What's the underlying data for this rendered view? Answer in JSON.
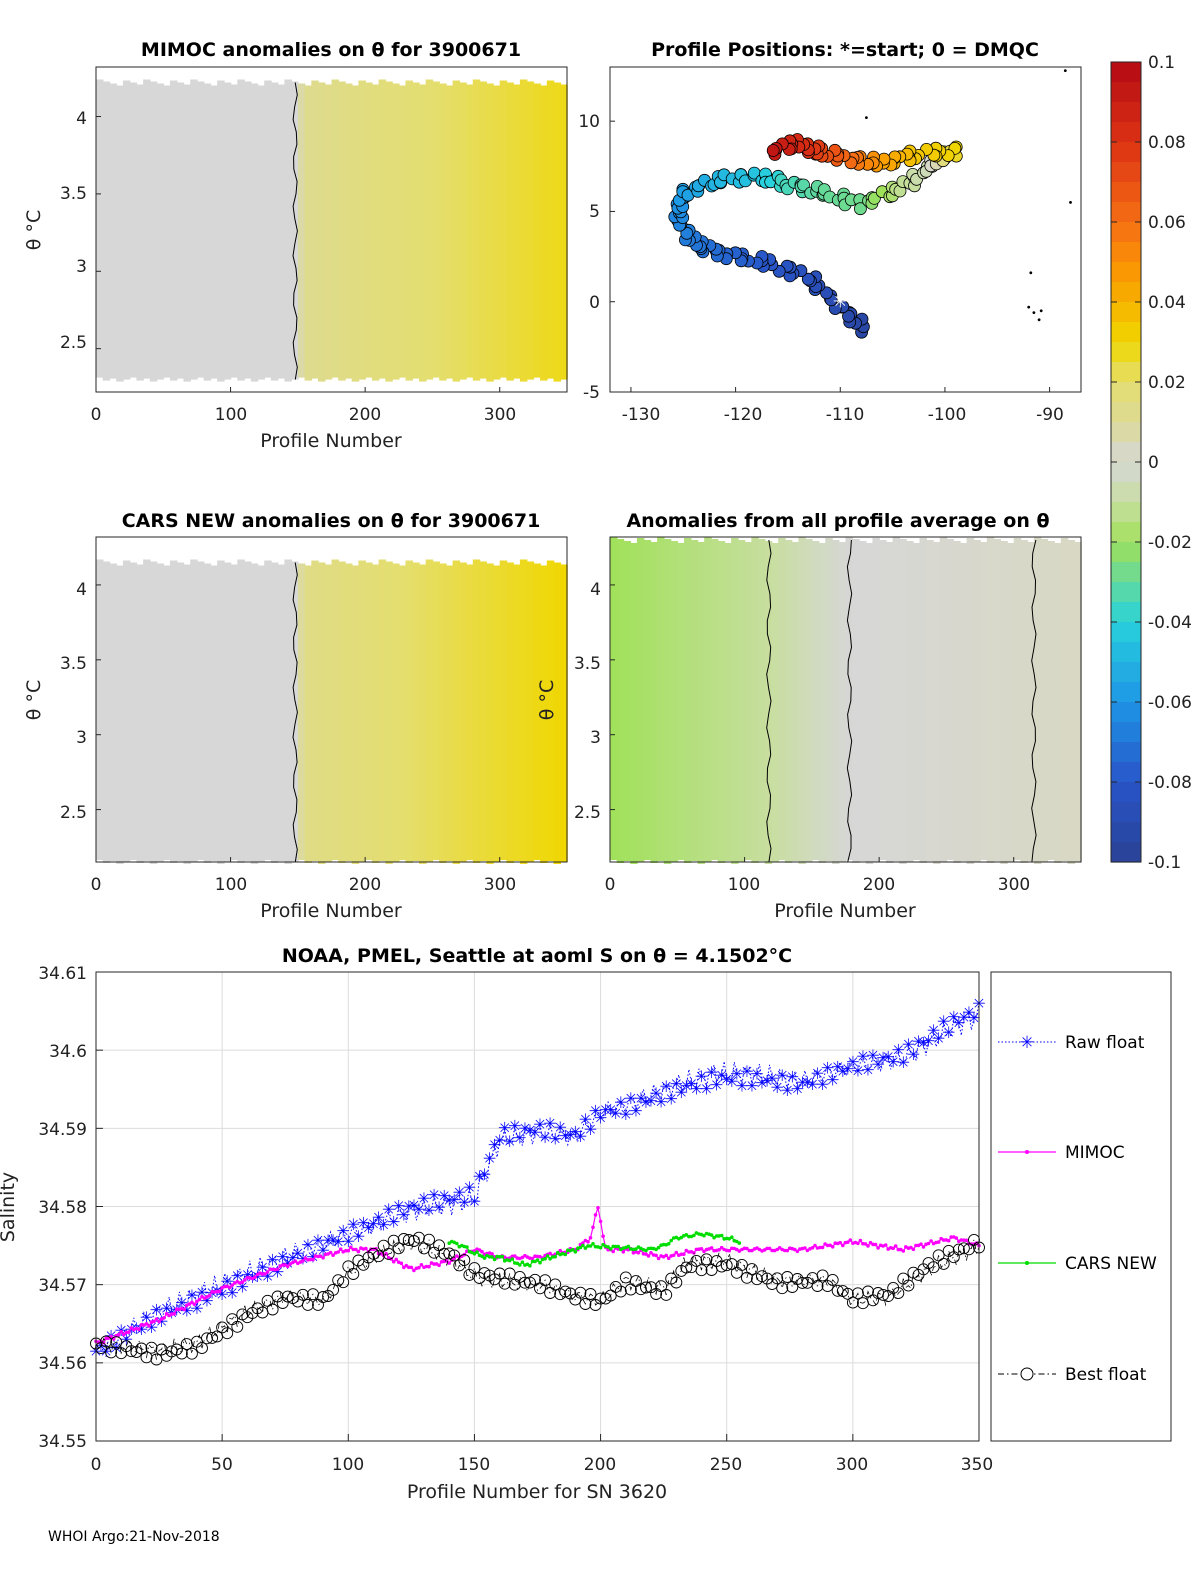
{
  "figure": {
    "footer": "WHOI Argo:21-Nov-2018"
  },
  "chart_data": [
    {
      "id": "mimoc",
      "type": "heatmap",
      "title": "MIMOC anomalies on θ  for 3900671",
      "xlabel": "Profile Number",
      "ylabel": "θ °C",
      "xlim": [
        0,
        350
      ],
      "ylim": [
        2.22,
        4.32
      ],
      "xticks": [
        "0",
        "100",
        "200",
        "300"
      ],
      "yticks": [
        "2.5",
        "3",
        "3.5",
        "4"
      ],
      "data_range": {
        "x": [
          0,
          350
        ],
        "y": [
          2.3,
          4.22
        ]
      },
      "value_gradient": [
        {
          "x": 0,
          "value": 0.0
        },
        {
          "x": 148,
          "value": 0.0
        },
        {
          "x": 155,
          "value": 0.012
        },
        {
          "x": 350,
          "value": 0.028
        }
      ],
      "contours": [
        {
          "x": 148,
          "level": 0.01
        }
      ]
    },
    {
      "id": "positions",
      "type": "scatter",
      "title": "Profile Positions: *=start; 0 = DMQC",
      "xlim": [
        -132,
        -87
      ],
      "ylim": [
        -5,
        13
      ],
      "xticks": [
        "-130",
        "-120",
        "-110",
        "-100",
        "-90"
      ],
      "yticks": [
        "-5",
        "0",
        "5",
        "10"
      ],
      "start_marker": {
        "lon": -110,
        "lat": 0
      },
      "track_keypoints": [
        {
          "lon": -107.5,
          "lat": -1.6,
          "value": -0.095
        },
        {
          "lon": -110,
          "lat": -0.3,
          "value": -0.09
        },
        {
          "lon": -113,
          "lat": 1.3,
          "value": -0.085
        },
        {
          "lon": -117,
          "lat": 2.2,
          "value": -0.08
        },
        {
          "lon": -121,
          "lat": 2.6,
          "value": -0.075
        },
        {
          "lon": -124,
          "lat": 3.2,
          "value": -0.07
        },
        {
          "lon": -125.5,
          "lat": 4.6,
          "value": -0.065
        },
        {
          "lon": -125,
          "lat": 6,
          "value": -0.058
        },
        {
          "lon": -122,
          "lat": 6.7,
          "value": -0.05
        },
        {
          "lon": -118,
          "lat": 7,
          "value": -0.045
        },
        {
          "lon": -115,
          "lat": 6.5,
          "value": -0.035
        },
        {
          "lon": -112,
          "lat": 6.1,
          "value": -0.03
        },
        {
          "lon": -108,
          "lat": 5.4,
          "value": -0.028
        },
        {
          "lon": -104,
          "lat": 6.3,
          "value": -0.012
        },
        {
          "lon": -101.5,
          "lat": 7.5,
          "value": -0.005
        },
        {
          "lon": -99,
          "lat": 8.4,
          "value": 0.03
        },
        {
          "lon": -103,
          "lat": 8.1,
          "value": 0.035
        },
        {
          "lon": -106,
          "lat": 7.7,
          "value": 0.045
        },
        {
          "lon": -109,
          "lat": 7.9,
          "value": 0.06
        },
        {
          "lon": -112,
          "lat": 8.3,
          "value": 0.075
        },
        {
          "lon": -114,
          "lat": 8.8,
          "value": 0.085
        },
        {
          "lon": -117,
          "lat": 8.2,
          "value": 0.095
        }
      ]
    },
    {
      "id": "cars",
      "type": "heatmap",
      "title": "CARS NEW anomalies on θ for 3900671",
      "xlabel": "Profile Number",
      "ylabel": "θ °C",
      "xlim": [
        0,
        350
      ],
      "ylim": [
        2.15,
        4.32
      ],
      "xticks": [
        "0",
        "100",
        "200",
        "300"
      ],
      "yticks": [
        "2.5",
        "3",
        "3.5",
        "4"
      ],
      "data_range": {
        "x": [
          0,
          350
        ],
        "y": [
          2.15,
          4.15
        ]
      },
      "value_gradient": [
        {
          "x": 0,
          "value": 0.0
        },
        {
          "x": 148,
          "value": 0.0
        },
        {
          "x": 155,
          "value": 0.014
        },
        {
          "x": 350,
          "value": 0.03
        }
      ],
      "contours": [
        {
          "x": 148,
          "level": 0.01
        }
      ]
    },
    {
      "id": "allprof",
      "type": "heatmap",
      "title": "Anomalies from all profile average on θ",
      "xlabel": "Profile Number",
      "ylabel": "θ °C",
      "xlim": [
        0,
        350
      ],
      "ylim": [
        2.15,
        4.32
      ],
      "xticks": [
        "0",
        "100",
        "200",
        "300"
      ],
      "yticks": [
        "2.5",
        "3",
        "3.5",
        "4"
      ],
      "data_range": {
        "x": [
          0,
          350
        ],
        "y": [
          2.15,
          4.3
        ]
      },
      "value_gradient": [
        {
          "x": 0,
          "value": -0.02
        },
        {
          "x": 120,
          "value": -0.01
        },
        {
          "x": 180,
          "value": 0.0
        },
        {
          "x": 350,
          "value": 0.003
        }
      ],
      "contours": [
        {
          "x": 118,
          "level": -0.01
        },
        {
          "x": 178,
          "level": 0.0
        },
        {
          "x": 315,
          "level": 0.0
        }
      ]
    },
    {
      "id": "colorbar",
      "type": "heatmap",
      "colormap": "jet-with-gray-center",
      "range": [
        -0.1,
        0.1
      ],
      "ticks": [
        "0.1",
        "0.08",
        "0.06",
        "0.04",
        "0.02",
        "0",
        "-0.02",
        "-0.04",
        "-0.06",
        "-0.08",
        "-0.1"
      ],
      "tick_values": [
        0.1,
        0.08,
        0.06,
        0.04,
        0.02,
        0,
        -0.02,
        -0.04,
        -0.06,
        -0.08,
        -0.1
      ]
    },
    {
      "id": "salinity",
      "type": "line",
      "title": "NOAA, PMEL, Seattle at aoml S on θ = 4.1502°C",
      "xlabel": "Profile Number for SN 3620",
      "ylabel": "Salinity",
      "xlim": [
        0,
        350
      ],
      "ylim": [
        34.55,
        34.61
      ],
      "grid": true,
      "legend_position": "right-outside",
      "xticks": [
        "0",
        "50",
        "100",
        "150",
        "200",
        "250",
        "300",
        "350"
      ],
      "yticks": [
        "34.55",
        "34.56",
        "34.57",
        "34.58",
        "34.59",
        "34.6",
        "34.61"
      ],
      "series": [
        {
          "name": "Raw float",
          "color": "#0000ff",
          "style": "dotted-star",
          "x": [
            0,
            25,
            50,
            75,
            100,
            125,
            150,
            160,
            175,
            190,
            200,
            215,
            230,
            245,
            260,
            280,
            300,
            320,
            340,
            350
          ],
          "y": [
            34.5615,
            34.5665,
            34.57,
            34.5735,
            34.5765,
            34.5795,
            34.581,
            34.5885,
            34.5895,
            34.589,
            34.592,
            34.5935,
            34.5955,
            34.597,
            34.597,
            34.596,
            34.598,
            34.599,
            34.603,
            34.6045
          ]
        },
        {
          "name": "MIMOC",
          "color": "#ff00ff",
          "style": "line-point",
          "x": [
            0,
            25,
            50,
            75,
            100,
            110,
            125,
            140,
            150,
            160,
            175,
            190,
            196,
            199,
            202,
            210,
            225,
            240,
            260,
            280,
            300,
            320,
            340,
            350
          ],
          "y": [
            34.5625,
            34.5655,
            34.5695,
            34.5725,
            34.5745,
            34.5745,
            34.572,
            34.573,
            34.5745,
            34.5735,
            34.5735,
            34.5745,
            34.576,
            34.58,
            34.5745,
            34.5745,
            34.5735,
            34.5745,
            34.5745,
            34.5745,
            34.5755,
            34.5745,
            34.576,
            34.575
          ]
        },
        {
          "name": "CARS NEW",
          "color": "#00dd00",
          "style": "line-point",
          "x": [
            140,
            145,
            150,
            155,
            160,
            170,
            180,
            190,
            195,
            220,
            225,
            230,
            240,
            250,
            255
          ],
          "y": [
            34.5755,
            34.575,
            34.574,
            34.5735,
            34.5735,
            34.5725,
            34.5735,
            34.5745,
            34.575,
            34.5745,
            34.575,
            34.576,
            34.5765,
            34.576,
            34.5755
          ]
        },
        {
          "name": "Best float",
          "color": "#000000",
          "style": "dashdot-circle",
          "x": [
            0,
            25,
            40,
            60,
            75,
            90,
            100,
            110,
            125,
            140,
            150,
            160,
            175,
            190,
            200,
            210,
            225,
            235,
            250,
            270,
            290,
            300,
            315,
            330,
            350
          ],
          "y": [
            34.5625,
            34.5615,
            34.5625,
            34.5665,
            34.5685,
            34.568,
            34.5715,
            34.5735,
            34.5755,
            34.5735,
            34.571,
            34.5705,
            34.57,
            34.5685,
            34.568,
            34.5705,
            34.5695,
            34.573,
            34.573,
            34.5705,
            34.5705,
            34.568,
            34.5685,
            34.572,
            34.575
          ]
        }
      ]
    }
  ]
}
